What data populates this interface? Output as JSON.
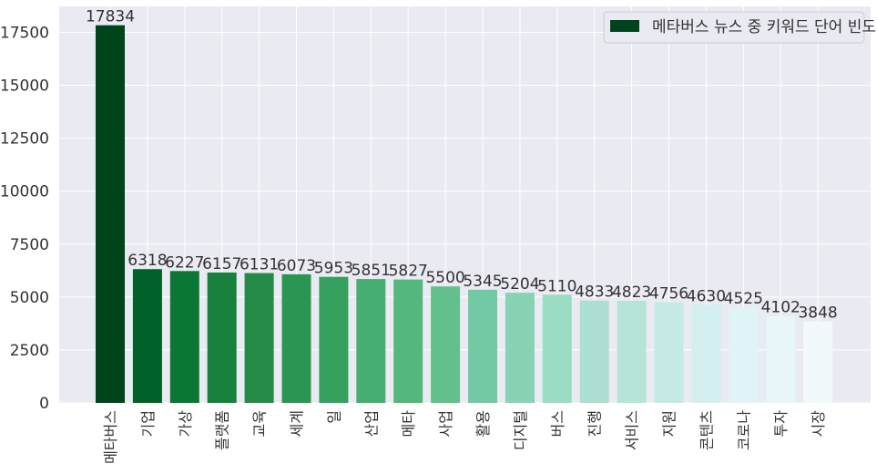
{
  "chart_data": {
    "type": "bar",
    "categories": [
      "메타버스",
      "기업",
      "가상",
      "플랫폼",
      "교육",
      "세계",
      "일",
      "산업",
      "메타",
      "사업",
      "활용",
      "디지털",
      "버스",
      "진행",
      "서비스",
      "지원",
      "콘텐츠",
      "코로나",
      "투자",
      "시장"
    ],
    "values": [
      17834,
      6318,
      6227,
      6157,
      6131,
      6073,
      5953,
      5851,
      5827,
      5500,
      5345,
      5204,
      5110,
      4833,
      4823,
      4756,
      4630,
      4525,
      4102,
      3848
    ],
    "data_labels": [
      "17834",
      "6318",
      "6227",
      "6157",
      "6131",
      "6073",
      "5953",
      "5851",
      "5827",
      "5500",
      "5345",
      "5204",
      "5110",
      "4833",
      "4823",
      "4756",
      "4630",
      "4525",
      "4102",
      "3848"
    ],
    "series": [
      {
        "name": "메타버스 뉴스 중 키워드 단어 빈도"
      }
    ],
    "yticks": [
      0,
      2500,
      5000,
      7500,
      10000,
      12500,
      15000,
      17500
    ],
    "ytick_labels": [
      "0",
      "2500",
      "5000",
      "7500",
      "10000",
      "12500",
      "15000",
      "17500"
    ],
    "ylim": [
      0,
      18725
    ],
    "grid": true,
    "legend_position": "top-right",
    "colors": {
      "background": "#eaeaf2",
      "grid": "#ffffff",
      "text": "#333333",
      "bars": [
        "#00441b",
        "#00622a",
        "#0b7734",
        "#17803c",
        "#238b45",
        "#2b9553",
        "#36a15f",
        "#47ae71",
        "#54b77c",
        "#63c08a",
        "#73c9a4",
        "#87d3b4",
        "#9bdcc4",
        "#addfd4",
        "#b6e4d9",
        "#c5eae5",
        "#d3eff0",
        "#e0f3f6",
        "#e8f5f9",
        "#f1f9fb"
      ],
      "legend_swatch": "#00441b"
    }
  }
}
